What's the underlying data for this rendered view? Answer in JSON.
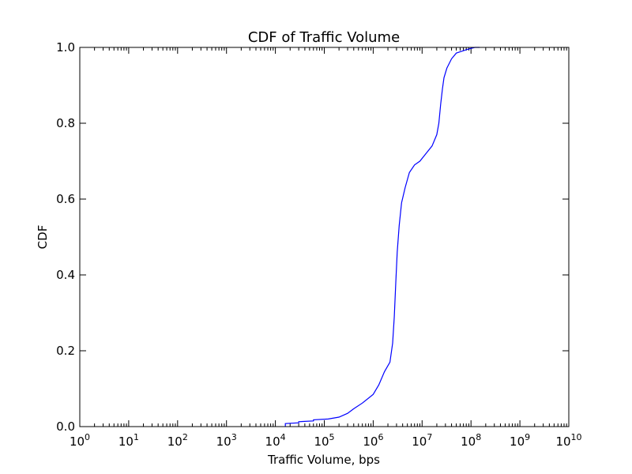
{
  "chart_data": {
    "type": "line",
    "title": "CDF of Traffic Volume",
    "xlabel": "Traffic Volume, bps",
    "ylabel": "CDF",
    "x_scale": "log",
    "xlim": [
      1,
      10000000000
    ],
    "ylim": [
      0,
      1.0
    ],
    "grid": false,
    "x_ticks": [
      {
        "value": 1,
        "base": "10",
        "exp": "0"
      },
      {
        "value": 10,
        "base": "10",
        "exp": "1"
      },
      {
        "value": 100,
        "base": "10",
        "exp": "2"
      },
      {
        "value": 1000,
        "base": "10",
        "exp": "3"
      },
      {
        "value": 10000,
        "base": "10",
        "exp": "4"
      },
      {
        "value": 100000,
        "base": "10",
        "exp": "5"
      },
      {
        "value": 1000000,
        "base": "10",
        "exp": "6"
      },
      {
        "value": 10000000,
        "base": "10",
        "exp": "7"
      },
      {
        "value": 100000000,
        "base": "10",
        "exp": "8"
      },
      {
        "value": 1000000000,
        "base": "10",
        "exp": "9"
      },
      {
        "value": 10000000000,
        "base": "10",
        "exp": "10"
      }
    ],
    "y_ticks": [
      {
        "value": 0.0,
        "label": "0.0"
      },
      {
        "value": 0.2,
        "label": "0.2"
      },
      {
        "value": 0.4,
        "label": "0.4"
      },
      {
        "value": 0.6,
        "label": "0.6"
      },
      {
        "value": 0.8,
        "label": "0.8"
      },
      {
        "value": 1.0,
        "label": "1.0"
      }
    ],
    "series": [
      {
        "color": "#0000ff",
        "x": [
          16000,
          16000,
          30000,
          30000,
          60000,
          60000,
          120000,
          200000,
          300000,
          400000,
          600000,
          1000000,
          1300000,
          1700000,
          2200000,
          2500000,
          2700000,
          2900000,
          3100000,
          3400000,
          3800000,
          4500000,
          5500000,
          7000000,
          9000000,
          12000000,
          16000000,
          20000000,
          22000000,
          24000000,
          26000000,
          28000000,
          32000000,
          40000000,
          50000000,
          65000000,
          85000000,
          120000000,
          150000000
        ],
        "y": [
          0.0,
          0.008,
          0.01,
          0.013,
          0.015,
          0.018,
          0.02,
          0.025,
          0.035,
          0.047,
          0.062,
          0.085,
          0.11,
          0.145,
          0.17,
          0.22,
          0.29,
          0.38,
          0.46,
          0.53,
          0.59,
          0.63,
          0.67,
          0.69,
          0.7,
          0.72,
          0.74,
          0.77,
          0.8,
          0.85,
          0.89,
          0.92,
          0.945,
          0.97,
          0.985,
          0.99,
          0.995,
          1.0,
          1.0
        ]
      }
    ]
  }
}
